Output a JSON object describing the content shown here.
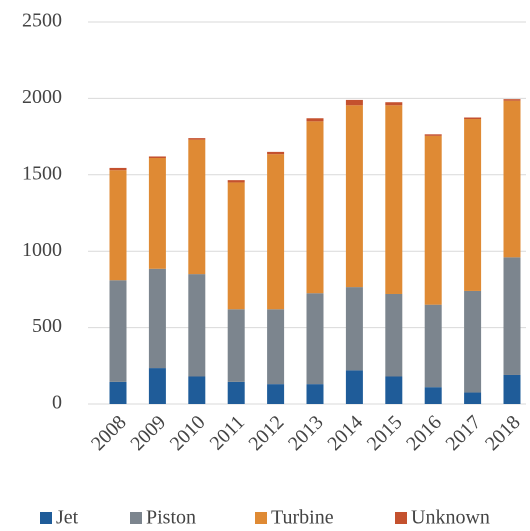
{
  "chart_data": {
    "type": "stacked_bar",
    "categories": [
      "2008",
      "2009",
      "2010",
      "2011",
      "2012",
      "2013",
      "2014",
      "2015",
      "2016",
      "2017",
      "2018"
    ],
    "series": [
      {
        "name": "Jet",
        "color": "#1f5c99",
        "values": [
          145,
          235,
          180,
          145,
          130,
          130,
          220,
          180,
          110,
          75,
          190
        ]
      },
      {
        "name": "Piston",
        "color": "#7c858e",
        "values": [
          665,
          650,
          670,
          475,
          490,
          595,
          545,
          540,
          540,
          665,
          770
        ]
      },
      {
        "name": "Turbine",
        "color": "#df8a34",
        "values": [
          720,
          725,
          880,
          830,
          1015,
          1125,
          1190,
          1235,
          1105,
          1125,
          1025
        ]
      },
      {
        "name": "Unknown",
        "color": "#c4512e",
        "values": [
          15,
          10,
          10,
          15,
          15,
          20,
          35,
          20,
          10,
          10,
          10
        ]
      }
    ],
    "ylim": [
      0,
      2500
    ],
    "yticks": [
      0,
      500,
      1000,
      1500,
      2000,
      2500
    ],
    "grid": true,
    "legend": "bottom"
  }
}
